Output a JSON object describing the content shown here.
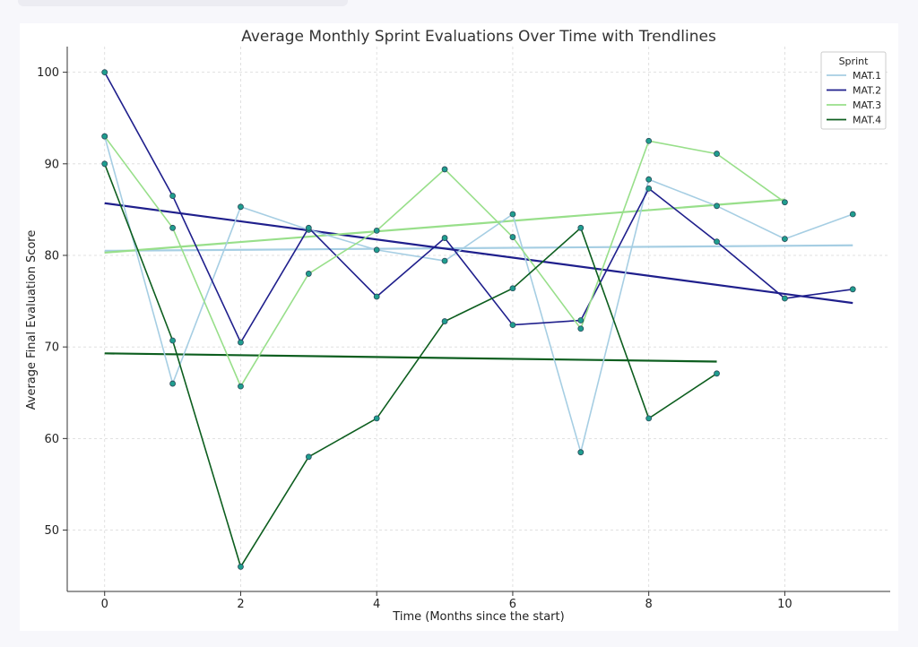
{
  "chart_data": {
    "type": "line",
    "title": "Average Monthly Sprint Evaluations Over Time with Trendlines",
    "xlabel": "Time (Months since the start)",
    "ylabel": "Average Final Evaluation Score",
    "xlim": [
      -0.55,
      11.55
    ],
    "ylim": [
      43.3,
      102.8
    ],
    "xticks": [
      0,
      2,
      4,
      6,
      8,
      10
    ],
    "yticks": [
      50,
      60,
      70,
      80,
      90,
      100
    ],
    "grid": true,
    "legend": {
      "title": "Sprint",
      "placement": "top-right"
    },
    "series": [
      {
        "name": "MAT.1",
        "color": "#a6cee3",
        "x": [
          0,
          1,
          2,
          3,
          4,
          5,
          6,
          7,
          8,
          9,
          10,
          11
        ],
        "values": [
          93.0,
          66.0,
          85.3,
          82.8,
          80.6,
          79.4,
          84.5,
          58.5,
          88.3,
          85.4,
          81.8,
          84.5
        ],
        "trend": [
          80.5,
          81.1
        ]
      },
      {
        "name": "MAT.2",
        "color": "#1f1f8c",
        "x": [
          0,
          1,
          2,
          3,
          4,
          5,
          6,
          7,
          8,
          9,
          10,
          11
        ],
        "values": [
          100.0,
          86.5,
          70.5,
          83.0,
          75.5,
          81.9,
          72.4,
          72.9,
          87.3,
          81.5,
          75.3,
          76.3
        ],
        "trend": [
          85.7,
          74.8
        ]
      },
      {
        "name": "MAT.3",
        "color": "#98df8a",
        "x": [
          0,
          1,
          2,
          3,
          4,
          5,
          6,
          7,
          8,
          9,
          10
        ],
        "values": [
          93.0,
          83.0,
          65.7,
          78.0,
          82.7,
          89.4,
          82.0,
          72.0,
          92.5,
          91.1,
          85.8
        ],
        "trend": [
          80.3,
          86.1
        ]
      },
      {
        "name": "MAT.4",
        "color": "#0d5e1f",
        "x": [
          0,
          1,
          2,
          3,
          4,
          5,
          6,
          7,
          8,
          9
        ],
        "values": [
          90.0,
          70.7,
          46.0,
          58.0,
          62.2,
          72.8,
          76.4,
          83.0,
          62.2,
          67.1
        ],
        "trend": [
          69.3,
          68.4
        ]
      }
    ]
  }
}
